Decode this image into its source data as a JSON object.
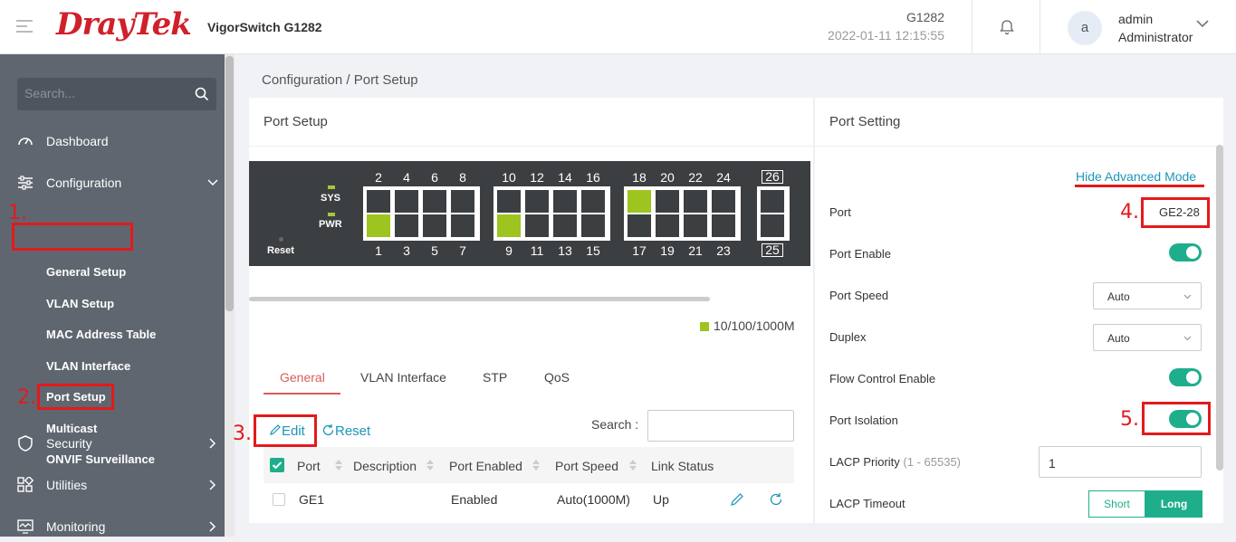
{
  "header": {
    "brand": "DrayTek",
    "model": "VigorSwitch G1282",
    "device_name": "G1282",
    "datetime": "2022-01-11 12:15:55",
    "avatar_letter": "a",
    "user_name": "admin",
    "user_role": "Administrator"
  },
  "sidebar": {
    "search_placeholder": "Search...",
    "items": [
      {
        "label": "Dashboard",
        "icon": "dashboard-gauge-icon"
      },
      {
        "label": "Configuration",
        "icon": "sliders-icon"
      },
      {
        "label": "Security",
        "icon": "shield-icon"
      },
      {
        "label": "Utilities",
        "icon": "grid-icon"
      },
      {
        "label": "Monitoring",
        "icon": "monitor-icon"
      }
    ],
    "sub_items": [
      "General Setup",
      "VLAN Setup",
      "MAC Address Table",
      "VLAN Interface",
      "Port Setup",
      "Multicast",
      "ONVIF Surveillance"
    ]
  },
  "annotations": [
    "1.",
    "2.",
    "3.",
    "4.",
    "5."
  ],
  "breadcrumb": {
    "parent": "Configuration",
    "sep": "/",
    "current": "Port Setup"
  },
  "port_setup": {
    "title": "Port Setup",
    "leds": [
      "SYS",
      "PWR"
    ],
    "reset_label": "Reset",
    "top_ports": [
      "2",
      "4",
      "6",
      "8",
      "10",
      "12",
      "14",
      "16",
      "18",
      "20",
      "22",
      "24",
      "26"
    ],
    "bottom_ports": [
      "1",
      "3",
      "5",
      "7",
      "9",
      "11",
      "13",
      "15",
      "17",
      "19",
      "21",
      "23",
      "25"
    ],
    "ports_up": [
      "1",
      "9",
      "18"
    ],
    "legend": "10/100/1000M",
    "legend_color": "#9dc41f",
    "tabs": [
      "General",
      "VLAN Interface",
      "STP",
      "QoS"
    ],
    "active_tab": "General",
    "edit_label": "Edit",
    "reset_btn_label": "Reset",
    "search_label": "Search :",
    "columns": [
      "Port",
      "Description",
      "Port Enabled",
      "Port Speed",
      "Link Status"
    ],
    "rows": [
      {
        "port": "GE1",
        "description": "",
        "enabled": "Enabled",
        "speed": "Auto(1000M)",
        "link": "Up"
      }
    ]
  },
  "port_setting": {
    "title": "Port Setting",
    "advanced_link": "Hide Advanced Mode",
    "port_label": "Port",
    "port_value": "GE2-28",
    "port_enable_label": "Port Enable",
    "port_enable": true,
    "port_speed_label": "Port Speed",
    "port_speed_value": "Auto",
    "duplex_label": "Duplex",
    "duplex_value": "Auto",
    "flow_control_label": "Flow Control Enable",
    "flow_control": true,
    "port_isolation_label": "Port Isolation",
    "port_isolation": true,
    "lacp_priority_label": "LACP Priority",
    "lacp_priority_range": "(1 - 65535)",
    "lacp_priority_value": "1",
    "lacp_timeout_label": "LACP Timeout",
    "lacp_short": "Short",
    "lacp_long": "Long",
    "lacp_selected": "Long"
  },
  "colors": {
    "accent": "#1fae8b",
    "link": "#1a96b8",
    "brand": "#d0202a",
    "annotation": "#e31a1c",
    "sidebar": "#5f6670"
  }
}
